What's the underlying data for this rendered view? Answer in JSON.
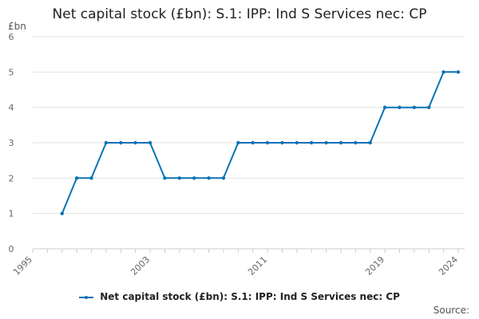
{
  "chart_data": {
    "type": "line",
    "title": "Net capital stock (£bn): S.1: IPP: Ind S Services nec: CP",
    "unit_label": "£bn",
    "xlabel": "",
    "ylabel": "",
    "xlim": [
      1995,
      2024
    ],
    "ylim": [
      0,
      6
    ],
    "x_ticks": [
      1995,
      2003,
      2011,
      2019,
      2024
    ],
    "y_ticks": [
      0,
      1,
      2,
      3,
      4,
      5,
      6
    ],
    "grid": true,
    "legend_position": "bottom",
    "series": [
      {
        "name": "Net capital stock (£bn): S.1: IPP: Ind S Services nec: CP",
        "color": "#0b72b5",
        "x": [
          1997,
          1998,
          1999,
          2000,
          2001,
          2002,
          2003,
          2004,
          2005,
          2006,
          2007,
          2008,
          2009,
          2010,
          2011,
          2012,
          2013,
          2014,
          2015,
          2016,
          2017,
          2018,
          2019,
          2020,
          2021,
          2022,
          2023,
          2024
        ],
        "values": [
          1,
          2,
          2,
          3,
          3,
          3,
          3,
          2,
          2,
          2,
          2,
          2,
          3,
          3,
          3,
          3,
          3,
          3,
          3,
          3,
          3,
          3,
          4,
          4,
          4,
          4,
          5,
          5
        ]
      }
    ]
  },
  "source_label": "Source:"
}
